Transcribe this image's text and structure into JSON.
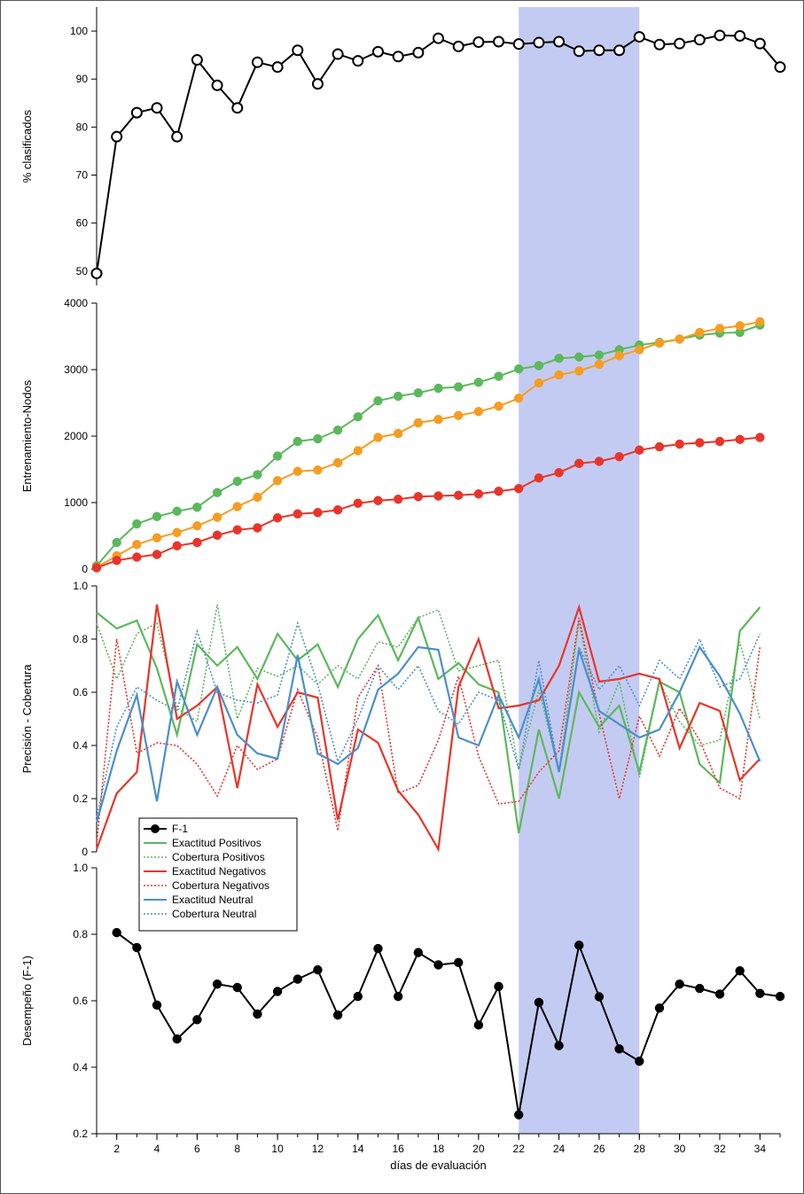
{
  "chart_data": {
    "type": "line",
    "xlabel": "días de evaluación",
    "x_range": [
      1,
      35
    ],
    "x_ticks": [
      2,
      4,
      6,
      8,
      10,
      12,
      14,
      16,
      18,
      20,
      22,
      24,
      26,
      28,
      30,
      32,
      34
    ],
    "highlight_range": [
      22,
      28
    ],
    "highlight_color": "#c4cbf2",
    "panels": [
      {
        "id": "clasificados",
        "ylabel": "% clasificados",
        "ylim": [
          47,
          105
        ],
        "y_ticks": [
          50,
          60,
          70,
          80,
          90,
          100
        ],
        "series": [
          {
            "color": "#000000",
            "line": "solid",
            "marker": "open-circle",
            "x": [
              1,
              2,
              3,
              4,
              5,
              6,
              7,
              8,
              9,
              10,
              11,
              12,
              13,
              14,
              15,
              16,
              17,
              18,
              19,
              20,
              21,
              22,
              23,
              24,
              25,
              26,
              27,
              28,
              29,
              30,
              31,
              32,
              33,
              34,
              35
            ],
            "y": [
              49.5,
              78,
              83,
              84,
              78,
              94,
              88.7,
              84,
              93.5,
              92.5,
              96,
              89,
              95.2,
              93.8,
              95.7,
              94.7,
              95.5,
              98.5,
              96.8,
              97.7,
              97.8,
              97.3,
              97.6,
              97.8,
              95.8,
              96,
              96,
              98.8,
              97.2,
              97.4,
              98.2,
              99.1,
              99,
              97.4,
              92.5
            ]
          }
        ]
      },
      {
        "id": "nodos",
        "ylabel": "Entrenamiento-Nodos",
        "ylim": [
          0,
          4000
        ],
        "y_ticks": [
          0,
          1000,
          2000,
          3000,
          4000
        ],
        "series": [
          {
            "color": "#5cb85c",
            "line": "solid",
            "marker": "filled-circle",
            "x": [
              1,
              2,
              3,
              4,
              5,
              6,
              7,
              8,
              9,
              10,
              11,
              12,
              13,
              14,
              15,
              16,
              17,
              18,
              19,
              20,
              21,
              22,
              23,
              24,
              25,
              26,
              27,
              28,
              29,
              30,
              31,
              32,
              33,
              34
            ],
            "y": [
              50,
              400,
              680,
              790,
              870,
              930,
              1150,
              1320,
              1420,
              1700,
              1920,
              1960,
              2090,
              2290,
              2530,
              2600,
              2650,
              2720,
              2740,
              2810,
              2900,
              3010,
              3060,
              3170,
              3190,
              3220,
              3300,
              3370,
              3410,
              3460,
              3520,
              3550,
              3560,
              3670
            ]
          },
          {
            "color": "#f59d22",
            "line": "solid",
            "marker": "filled-circle",
            "x": [
              1,
              2,
              3,
              4,
              5,
              6,
              7,
              8,
              9,
              10,
              11,
              12,
              13,
              14,
              15,
              16,
              17,
              18,
              19,
              20,
              21,
              22,
              23,
              24,
              25,
              26,
              27,
              28,
              29,
              30,
              31,
              32,
              33,
              34
            ],
            "y": [
              30,
              200,
              370,
              470,
              550,
              650,
              780,
              940,
              1080,
              1330,
              1470,
              1490,
              1600,
              1780,
              1980,
              2040,
              2200,
              2250,
              2310,
              2370,
              2450,
              2570,
              2800,
              2920,
              2980,
              3080,
              3210,
              3300,
              3400,
              3460,
              3560,
              3620,
              3660,
              3720
            ]
          },
          {
            "color": "#e8352a",
            "line": "solid",
            "marker": "filled-circle",
            "x": [
              1,
              2,
              3,
              4,
              5,
              6,
              7,
              8,
              9,
              10,
              11,
              12,
              13,
              14,
              15,
              16,
              17,
              18,
              19,
              20,
              21,
              22,
              23,
              24,
              25,
              26,
              27,
              28,
              29,
              30,
              31,
              32,
              33,
              34
            ],
            "y": [
              20,
              130,
              180,
              220,
              350,
              400,
              510,
              590,
              620,
              770,
              830,
              850,
              890,
              990,
              1030,
              1050,
              1090,
              1100,
              1110,
              1130,
              1170,
              1210,
              1370,
              1450,
              1590,
              1620,
              1690,
              1790,
              1840,
              1880,
              1900,
              1920,
              1950,
              1980
            ]
          }
        ]
      },
      {
        "id": "precision",
        "ylabel": "Precisión - Cobertura",
        "ylim": [
          0,
          1
        ],
        "y_ticks": [
          0,
          0.2,
          0.4,
          0.6,
          0.8,
          1.0
        ],
        "series": [
          {
            "name": "Exactitud Positivos",
            "color": "#5cb85c",
            "line": "solid",
            "x": [
              1,
              2,
              3,
              4,
              5,
              6,
              7,
              8,
              9,
              10,
              11,
              12,
              13,
              14,
              15,
              16,
              17,
              18,
              19,
              20,
              21,
              22,
              23,
              24,
              25,
              26,
              27,
              28,
              29,
              30,
              31,
              32,
              33,
              34
            ],
            "y": [
              0.9,
              0.84,
              0.87,
              0.69,
              0.44,
              0.78,
              0.7,
              0.77,
              0.65,
              0.82,
              0.72,
              0.78,
              0.62,
              0.8,
              0.89,
              0.72,
              0.88,
              0.65,
              0.71,
              0.63,
              0.6,
              0.07,
              0.46,
              0.2,
              0.6,
              0.47,
              0.55,
              0.3,
              0.64,
              0.6,
              0.33,
              0.26,
              0.83,
              0.92
            ]
          },
          {
            "name": "Cobertura Positivos",
            "color": "#5cb85c",
            "line": "dotted",
            "x": [
              1,
              2,
              3,
              4,
              5,
              6,
              7,
              8,
              9,
              10,
              11,
              12,
              13,
              14,
              15,
              16,
              17,
              18,
              19,
              20,
              21,
              22,
              23,
              24,
              25,
              26,
              27,
              28,
              29,
              30,
              31,
              32,
              33,
              34
            ],
            "y": [
              0.86,
              0.65,
              0.82,
              0.86,
              0.54,
              0.49,
              0.93,
              0.5,
              0.69,
              0.66,
              0.7,
              0.63,
              0.7,
              0.65,
              0.79,
              0.77,
              0.88,
              0.91,
              0.68,
              0.7,
              0.72,
              0.31,
              0.61,
              0.3,
              0.87,
              0.45,
              0.64,
              0.28,
              0.64,
              0.49,
              0.4,
              0.42,
              0.79,
              0.5
            ]
          },
          {
            "name": "Exactitud Negativos",
            "color": "#e8352a",
            "line": "solid",
            "x": [
              1,
              2,
              3,
              4,
              5,
              6,
              7,
              8,
              9,
              10,
              11,
              12,
              13,
              14,
              15,
              16,
              17,
              18,
              19,
              20,
              21,
              22,
              23,
              24,
              25,
              26,
              27,
              28,
              29,
              30,
              31,
              32,
              33,
              34
            ],
            "y": [
              0.01,
              0.22,
              0.3,
              0.93,
              0.5,
              0.55,
              0.62,
              0.24,
              0.63,
              0.47,
              0.6,
              0.58,
              0.12,
              0.46,
              0.41,
              0.23,
              0.14,
              0.01,
              0.62,
              0.8,
              0.54,
              0.55,
              0.57,
              0.7,
              0.92,
              0.64,
              0.65,
              0.67,
              0.65,
              0.39,
              0.56,
              0.53,
              0.27,
              0.35
            ]
          },
          {
            "name": "Cobertura Negativos",
            "color": "#e8352a",
            "line": "dotted",
            "x": [
              1,
              2,
              3,
              4,
              5,
              6,
              7,
              8,
              9,
              10,
              11,
              12,
              13,
              14,
              15,
              16,
              17,
              18,
              19,
              20,
              21,
              22,
              23,
              24,
              25,
              26,
              27,
              28,
              29,
              30,
              31,
              32,
              33,
              34
            ],
            "y": [
              0.03,
              0.8,
              0.37,
              0.41,
              0.4,
              0.33,
              0.21,
              0.4,
              0.31,
              0.35,
              0.61,
              0.43,
              0.08,
              0.58,
              0.7,
              0.22,
              0.25,
              0.42,
              0.66,
              0.36,
              0.18,
              0.19,
              0.3,
              0.38,
              0.88,
              0.52,
              0.2,
              0.51,
              0.36,
              0.54,
              0.42,
              0.24,
              0.2,
              0.77
            ]
          },
          {
            "name": "Exactitud Neutral",
            "color": "#4a8fcb",
            "line": "solid",
            "x": [
              1,
              2,
              3,
              4,
              5,
              6,
              7,
              8,
              9,
              10,
              11,
              12,
              13,
              14,
              15,
              16,
              17,
              18,
              19,
              20,
              21,
              22,
              23,
              24,
              25,
              26,
              27,
              28,
              29,
              30,
              31,
              32,
              33,
              34
            ],
            "y": [
              0.11,
              0.38,
              0.59,
              0.19,
              0.64,
              0.44,
              0.62,
              0.44,
              0.37,
              0.35,
              0.74,
              0.37,
              0.33,
              0.39,
              0.61,
              0.67,
              0.77,
              0.76,
              0.43,
              0.4,
              0.59,
              0.43,
              0.65,
              0.3,
              0.76,
              0.53,
              0.48,
              0.43,
              0.46,
              0.6,
              0.77,
              0.66,
              0.52,
              0.34
            ]
          },
          {
            "name": "Cobertura Neutral",
            "color": "#4a8fcb",
            "line": "dotted",
            "x": [
              1,
              2,
              3,
              4,
              5,
              6,
              7,
              8,
              9,
              10,
              11,
              12,
              13,
              14,
              15,
              16,
              17,
              18,
              19,
              20,
              21,
              22,
              23,
              24,
              25,
              26,
              27,
              28,
              29,
              30,
              31,
              32,
              33,
              34
            ],
            "y": [
              0.13,
              0.47,
              0.62,
              0.57,
              0.53,
              0.83,
              0.6,
              0.57,
              0.56,
              0.59,
              0.86,
              0.63,
              0.34,
              0.5,
              0.7,
              0.61,
              0.7,
              0.53,
              0.48,
              0.6,
              0.57,
              0.31,
              0.72,
              0.3,
              0.77,
              0.61,
              0.7,
              0.55,
              0.72,
              0.65,
              0.8,
              0.62,
              0.65,
              0.82
            ]
          }
        ]
      },
      {
        "id": "f1",
        "ylabel": "Desempeño (F-1)",
        "ylim": [
          0.2,
          1.0
        ],
        "y_ticks": [
          0.2,
          0.4,
          0.6,
          0.8,
          1.0
        ],
        "series": [
          {
            "name": "F-1",
            "color": "#000000",
            "line": "solid",
            "marker": "filled-circle",
            "x": [
              2,
              3,
              4,
              5,
              6,
              7,
              8,
              9,
              10,
              11,
              12,
              13,
              14,
              15,
              16,
              17,
              18,
              19,
              20,
              21,
              22,
              23,
              24,
              25,
              26,
              27,
              28,
              29,
              30,
              31,
              32,
              33,
              34,
              35
            ],
            "y": [
              0.805,
              0.76,
              0.587,
              0.485,
              0.543,
              0.65,
              0.64,
              0.56,
              0.628,
              0.665,
              0.693,
              0.557,
              0.613,
              0.757,
              0.613,
              0.745,
              0.708,
              0.715,
              0.527,
              0.643,
              0.257,
              0.595,
              0.465,
              0.767,
              0.612,
              0.455,
              0.418,
              0.578,
              0.65,
              0.637,
              0.62,
              0.69,
              0.622,
              0.613
            ]
          }
        ]
      }
    ],
    "legend": {
      "placement": "lower-left of third panel",
      "entries": [
        {
          "label": "F-1",
          "series": "F-1",
          "color": "#000000",
          "line": "solid",
          "marker": "filled-circle"
        },
        {
          "label": "Exactitud Positivos",
          "color": "#5cb85c",
          "line": "solid"
        },
        {
          "label": "Cobertura Positivos",
          "color": "#5cb85c",
          "line": "dotted"
        },
        {
          "label": "Exactitud Negativos",
          "color": "#e8352a",
          "line": "solid"
        },
        {
          "label": "Cobertura Negativos",
          "color": "#e8352a",
          "line": "dotted"
        },
        {
          "label": "Exactitud Neutral",
          "color": "#4a8fcb",
          "line": "solid"
        },
        {
          "label": "Cobertura Neutral",
          "color": "#4a8fcb",
          "line": "dotted"
        }
      ]
    }
  }
}
